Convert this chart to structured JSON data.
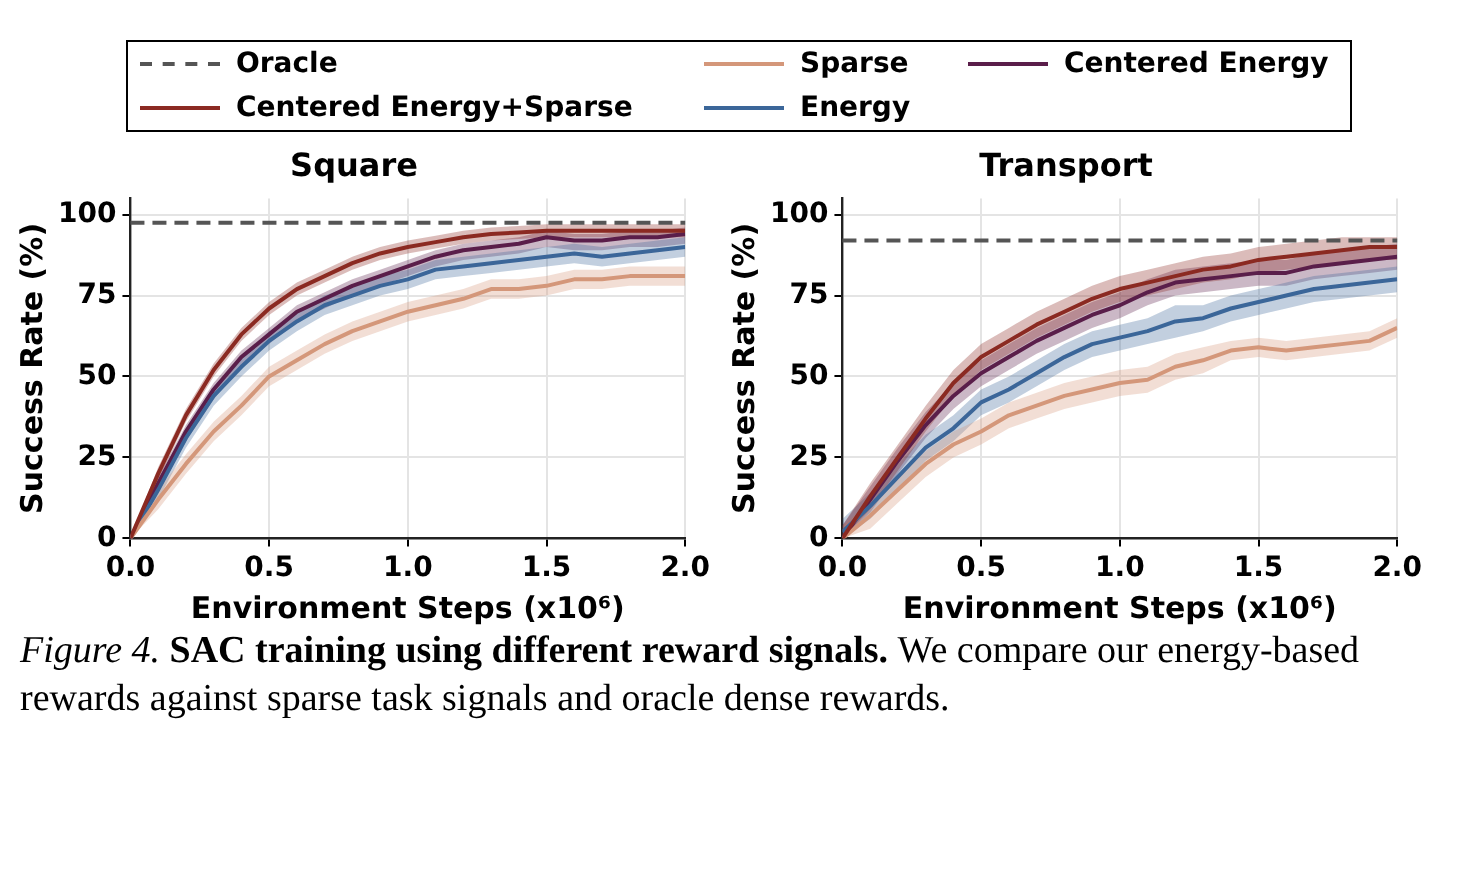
{
  "chart_data": [
    {
      "type": "line",
      "title": "Square",
      "xlabel": "Environment Steps (x10⁶)",
      "ylabel": "Success Rate (%)",
      "legend": "top",
      "grid": true,
      "x": [
        0,
        0.1,
        0.2,
        0.3,
        0.4,
        0.5,
        0.6,
        0.7,
        0.8,
        0.9,
        1.0,
        1.1,
        1.2,
        1.3,
        1.4,
        1.5,
        1.6,
        1.7,
        1.8,
        1.9,
        2.0
      ],
      "xlim": [
        0,
        2
      ],
      "xticks": [
        {
          "value": 0,
          "label": "0.0"
        },
        {
          "value": 0.5,
          "label": "0.5"
        },
        {
          "value": 1,
          "label": "1.0"
        },
        {
          "value": 1.5,
          "label": "1.5"
        },
        {
          "value": 2,
          "label": "2.0"
        }
      ],
      "ylim": [
        0,
        105
      ],
      "yticks": [
        0,
        25,
        50,
        75,
        100
      ],
      "ref_lines": [
        {
          "axis": "y",
          "value": 97.5,
          "label": "Oracle",
          "color": "#555555",
          "line_style": "dashed"
        }
      ],
      "annotations": [
        "Figure 4.",
        "SAC training using different reward signals.",
        "We compare our energy-based rewards against sparse task signals and oracle dense rewards."
      ],
      "series": [
        {
          "name": "Centered Energy+Sparse",
          "color": "#8b2a22",
          "values": [
            0,
            20,
            38,
            52,
            63,
            71,
            77,
            81,
            85,
            88,
            90,
            91.5,
            93,
            94,
            94.5,
            95,
            95,
            95,
            95,
            95,
            95
          ],
          "lower": [
            0,
            18,
            36,
            50,
            61,
            69,
            75,
            79,
            83,
            86,
            88,
            89.5,
            91,
            92,
            92.5,
            93,
            93,
            93,
            93,
            93,
            93
          ],
          "upper": [
            0,
            22,
            40,
            54,
            65,
            73,
            79,
            83,
            87,
            90,
            92,
            93.5,
            95,
            96,
            96.5,
            97,
            97,
            97,
            97,
            97,
            97
          ]
        },
        {
          "name": "Sparse",
          "color": "#d4977a",
          "values": [
            0,
            12,
            23,
            33,
            41,
            50,
            55,
            60,
            64,
            67,
            70,
            72,
            74,
            77,
            77,
            78,
            80,
            80,
            81,
            81,
            81
          ],
          "lower": [
            0,
            9,
            20,
            30,
            38,
            47,
            52,
            57,
            61,
            64,
            67,
            69,
            71,
            74,
            74,
            75,
            77,
            77,
            78,
            78,
            78
          ],
          "upper": [
            0,
            15,
            26,
            36,
            44,
            53,
            58,
            63,
            67,
            70,
            73,
            75,
            77,
            80,
            80,
            81,
            83,
            83,
            84,
            84,
            84
          ]
        },
        {
          "name": "Energy",
          "color": "#3b6699",
          "values": [
            0,
            15,
            31,
            44,
            53,
            61,
            67,
            72,
            75,
            78,
            80,
            83,
            84,
            85,
            86,
            87,
            88,
            87,
            88,
            89,
            90
          ],
          "lower": [
            0,
            12,
            28,
            41,
            50,
            58,
            64,
            69,
            72,
            75,
            77,
            80,
            81,
            82,
            83,
            84,
            85,
            84,
            85,
            86,
            87
          ],
          "upper": [
            0,
            18,
            34,
            47,
            56,
            64,
            70,
            75,
            78,
            81,
            83,
            86,
            87,
            88,
            89,
            90,
            91,
            90,
            91,
            92,
            93
          ]
        },
        {
          "name": "Centered Energy",
          "color": "#5a1e4a",
          "values": [
            0,
            17,
            33,
            46,
            56,
            63,
            70,
            74,
            78,
            81,
            84,
            87,
            89,
            90,
            91,
            93,
            92,
            92,
            93,
            93,
            94
          ],
          "lower": [
            0,
            14,
            30,
            43,
            53,
            60,
            67,
            71,
            75,
            78,
            81,
            84,
            86,
            87,
            88,
            90,
            89,
            89,
            90,
            90,
            91
          ],
          "upper": [
            0,
            19,
            35,
            48,
            58,
            65,
            72,
            76,
            80,
            83,
            86,
            89,
            91,
            92,
            93,
            95,
            94,
            94,
            95,
            95,
            96
          ]
        }
      ]
    },
    {
      "type": "line",
      "title": "Transport",
      "xlabel": "Environment Steps (x10⁶)",
      "ylabel": "Success Rate (%)",
      "grid": true,
      "x": [
        0,
        0.1,
        0.2,
        0.3,
        0.4,
        0.5,
        0.6,
        0.7,
        0.8,
        0.9,
        1.0,
        1.1,
        1.2,
        1.3,
        1.4,
        1.5,
        1.6,
        1.7,
        1.8,
        1.9,
        2.0
      ],
      "xlim": [
        0,
        2
      ],
      "xticks": [
        {
          "value": 0,
          "label": "0.0"
        },
        {
          "value": 0.5,
          "label": "0.5"
        },
        {
          "value": 1,
          "label": "1.0"
        },
        {
          "value": 1.5,
          "label": "1.5"
        },
        {
          "value": 2,
          "label": "2.0"
        }
      ],
      "ylim": [
        0,
        105
      ],
      "yticks": [
        0,
        25,
        50,
        75,
        100
      ],
      "ref_lines": [
        {
          "axis": "y",
          "value": 92,
          "color": "#555555",
          "line_style": "dashed"
        }
      ],
      "series": [
        {
          "color": "#8b2a22",
          "values": [
            0,
            13,
            25,
            37,
            48,
            56,
            61,
            66,
            70,
            74,
            77,
            79,
            81,
            83,
            84,
            86,
            87,
            88,
            89,
            90,
            90
          ],
          "lower": [
            0,
            9,
            21,
            33,
            44,
            52,
            57,
            62,
            66,
            70,
            73,
            75,
            77,
            79,
            80,
            82,
            83,
            84,
            85,
            86,
            86
          ],
          "upper": [
            4,
            17,
            29,
            41,
            52,
            60,
            65,
            70,
            74,
            78,
            81,
            83,
            85,
            87,
            88,
            90,
            91,
            92,
            93,
            93,
            93
          ]
        },
        {
          "color": "#d4977a",
          "values": [
            0,
            7,
            15,
            23,
            29,
            33,
            38,
            41,
            44,
            46,
            48,
            49,
            53,
            55,
            58,
            59,
            58,
            59,
            60,
            61,
            65
          ],
          "lower": [
            0,
            3,
            11,
            19,
            25,
            29,
            34,
            37,
            40,
            42,
            44,
            45,
            49,
            51,
            55,
            56,
            55,
            56,
            57,
            58,
            62
          ],
          "upper": [
            4,
            11,
            19,
            27,
            33,
            37,
            42,
            45,
            48,
            50,
            52,
            53,
            57,
            59,
            61,
            62,
            61,
            62,
            63,
            64,
            68
          ]
        },
        {
          "color": "#3b6699",
          "values": [
            2,
            10,
            19,
            28,
            34,
            42,
            46,
            51,
            56,
            60,
            62,
            64,
            67,
            68,
            71,
            73,
            75,
            77,
            78,
            79,
            80
          ],
          "lower": [
            0,
            6,
            15,
            24,
            30,
            38,
            42,
            47,
            52,
            56,
            58,
            60,
            62,
            64,
            67,
            69,
            71,
            73,
            74,
            75,
            76
          ],
          "upper": [
            6,
            14,
            23,
            32,
            38,
            46,
            50,
            55,
            60,
            64,
            66,
            68,
            72,
            72,
            75,
            77,
            79,
            81,
            82,
            83,
            84
          ]
        },
        {
          "color": "#5a1e4a",
          "values": [
            0,
            12,
            24,
            35,
            44,
            51,
            56,
            61,
            65,
            69,
            72,
            76,
            79,
            80,
            81,
            82,
            82,
            84,
            85,
            86,
            87
          ],
          "lower": [
            0,
            8,
            20,
            31,
            40,
            47,
            52,
            57,
            61,
            65,
            68,
            72,
            75,
            76,
            77,
            78,
            78,
            80,
            81,
            82,
            83
          ],
          "upper": [
            4,
            16,
            28,
            39,
            48,
            55,
            60,
            65,
            69,
            73,
            76,
            80,
            83,
            84,
            85,
            86,
            86,
            88,
            89,
            90,
            91
          ]
        }
      ]
    }
  ]
}
